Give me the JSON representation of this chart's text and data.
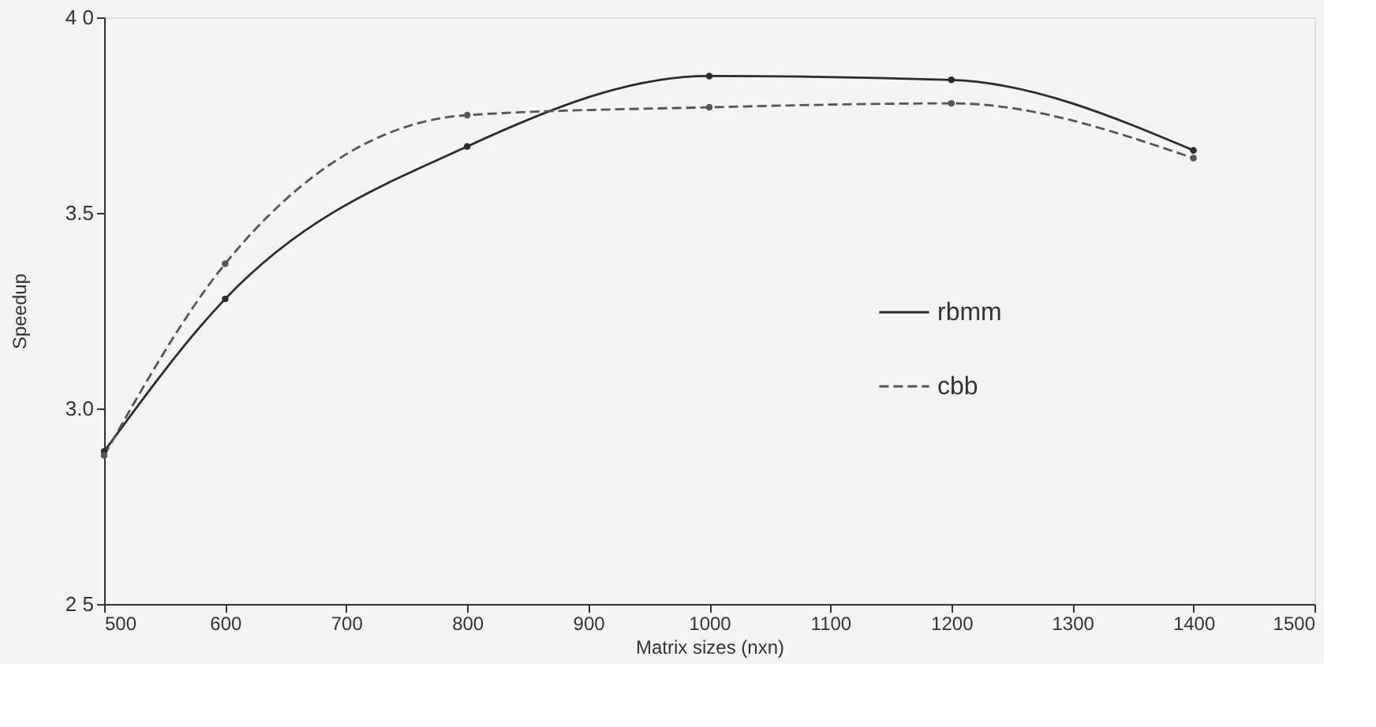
{
  "chart_data": {
    "type": "line",
    "xlabel": "Matrix sizes (nxn)",
    "ylabel": "Speedup",
    "x": [
      500,
      600,
      800,
      1000,
      1200,
      1400
    ],
    "xlim": [
      500,
      1500
    ],
    "xticks": [
      500,
      600,
      700,
      800,
      900,
      1000,
      1100,
      1200,
      1300,
      1400,
      1500
    ],
    "ylim": [
      2.5,
      4.0
    ],
    "yticks": [
      {
        "value": 2.5,
        "label": "2 5"
      },
      {
        "value": 3.0,
        "label": "3.0"
      },
      3.5,
      {
        "value": 4.0,
        "label": "4 0"
      }
    ],
    "grid": false,
    "legend": "right",
    "marker": "circle",
    "series": [
      {
        "name": "rbmm",
        "color": "#2b2b2b",
        "line_style": "solid",
        "values": [
          2.89,
          3.28,
          3.67,
          3.85,
          3.84,
          3.66
        ]
      },
      {
        "name": "cbb",
        "color": "#555555",
        "line_style": "dashed",
        "values": [
          2.88,
          3.37,
          3.75,
          3.77,
          3.78,
          3.64
        ]
      }
    ]
  }
}
